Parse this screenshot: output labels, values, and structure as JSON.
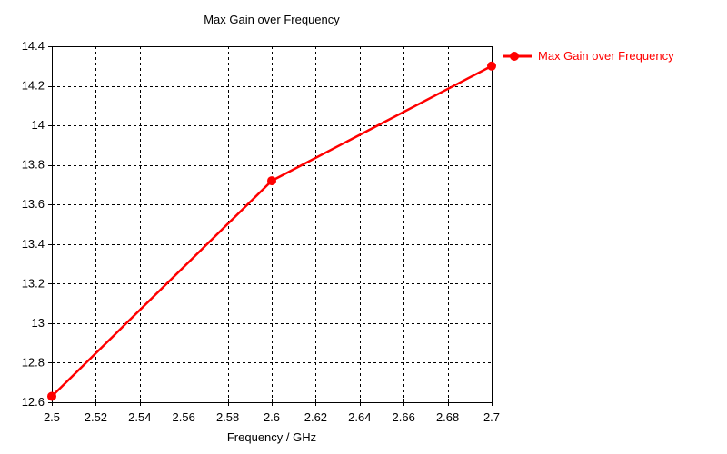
{
  "chart_data": {
    "type": "line",
    "title": "Max Gain over Frequency",
    "xlabel": "Frequency / GHz",
    "ylabel": "",
    "legend_label": "Max Gain over Frequency",
    "legend_position": "top-right-outside",
    "x": [
      2.5,
      2.6,
      2.7
    ],
    "values": [
      12.63,
      13.72,
      14.3
    ],
    "xlim": [
      2.5,
      2.7
    ],
    "ylim": [
      12.6,
      14.4
    ],
    "x_ticks": [
      "2.5",
      "2.52",
      "2.54",
      "2.56",
      "2.58",
      "2.6",
      "2.62",
      "2.64",
      "2.66",
      "2.68",
      "2.7"
    ],
    "y_ticks": [
      "14.4",
      "14.2",
      "14",
      "13.8",
      "13.6",
      "13.4",
      "13.2",
      "13",
      "12.8",
      "12.6"
    ],
    "grid": "dashed",
    "marker": "circle",
    "colors": {
      "line": "#ff0000",
      "marker": "#ff0000",
      "grid": "#000000",
      "axis": "#000000",
      "title_text": "#000000",
      "tick_text": "#000000",
      "legend_text": "#ff0000",
      "background": "#ffffff"
    }
  }
}
